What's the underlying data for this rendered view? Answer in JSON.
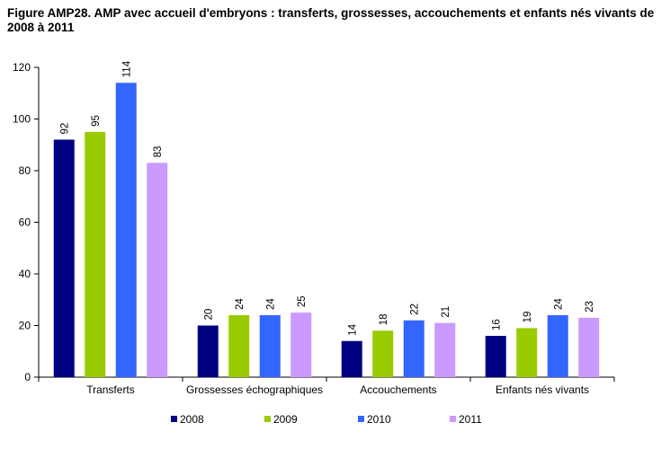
{
  "chart_data": {
    "type": "bar",
    "title": "Figure AMP28. AMP avec accueil d'embryons : transferts, grossesses, accouchements et enfants nés vivants de 2008 à 2011",
    "xlabel": "",
    "ylabel": "",
    "categories": [
      "Transferts",
      "Grossesses échographiques",
      "Accouchements",
      "Enfants nés vivants"
    ],
    "series": [
      {
        "name": "2008",
        "color": "#000080",
        "values": [
          92,
          20,
          14,
          16
        ]
      },
      {
        "name": "2009",
        "color": "#99CC00",
        "values": [
          95,
          24,
          18,
          19
        ]
      },
      {
        "name": "2010",
        "color": "#3366FF",
        "values": [
          114,
          24,
          22,
          24
        ]
      },
      {
        "name": "2011",
        "color": "#CC99FF",
        "values": [
          83,
          25,
          21,
          23
        ]
      }
    ],
    "ylim": [
      0,
      120
    ],
    "yticks": [
      0,
      20,
      40,
      60,
      80,
      100,
      120
    ],
    "grid": false,
    "legend": "bottom",
    "data_labels": true
  }
}
